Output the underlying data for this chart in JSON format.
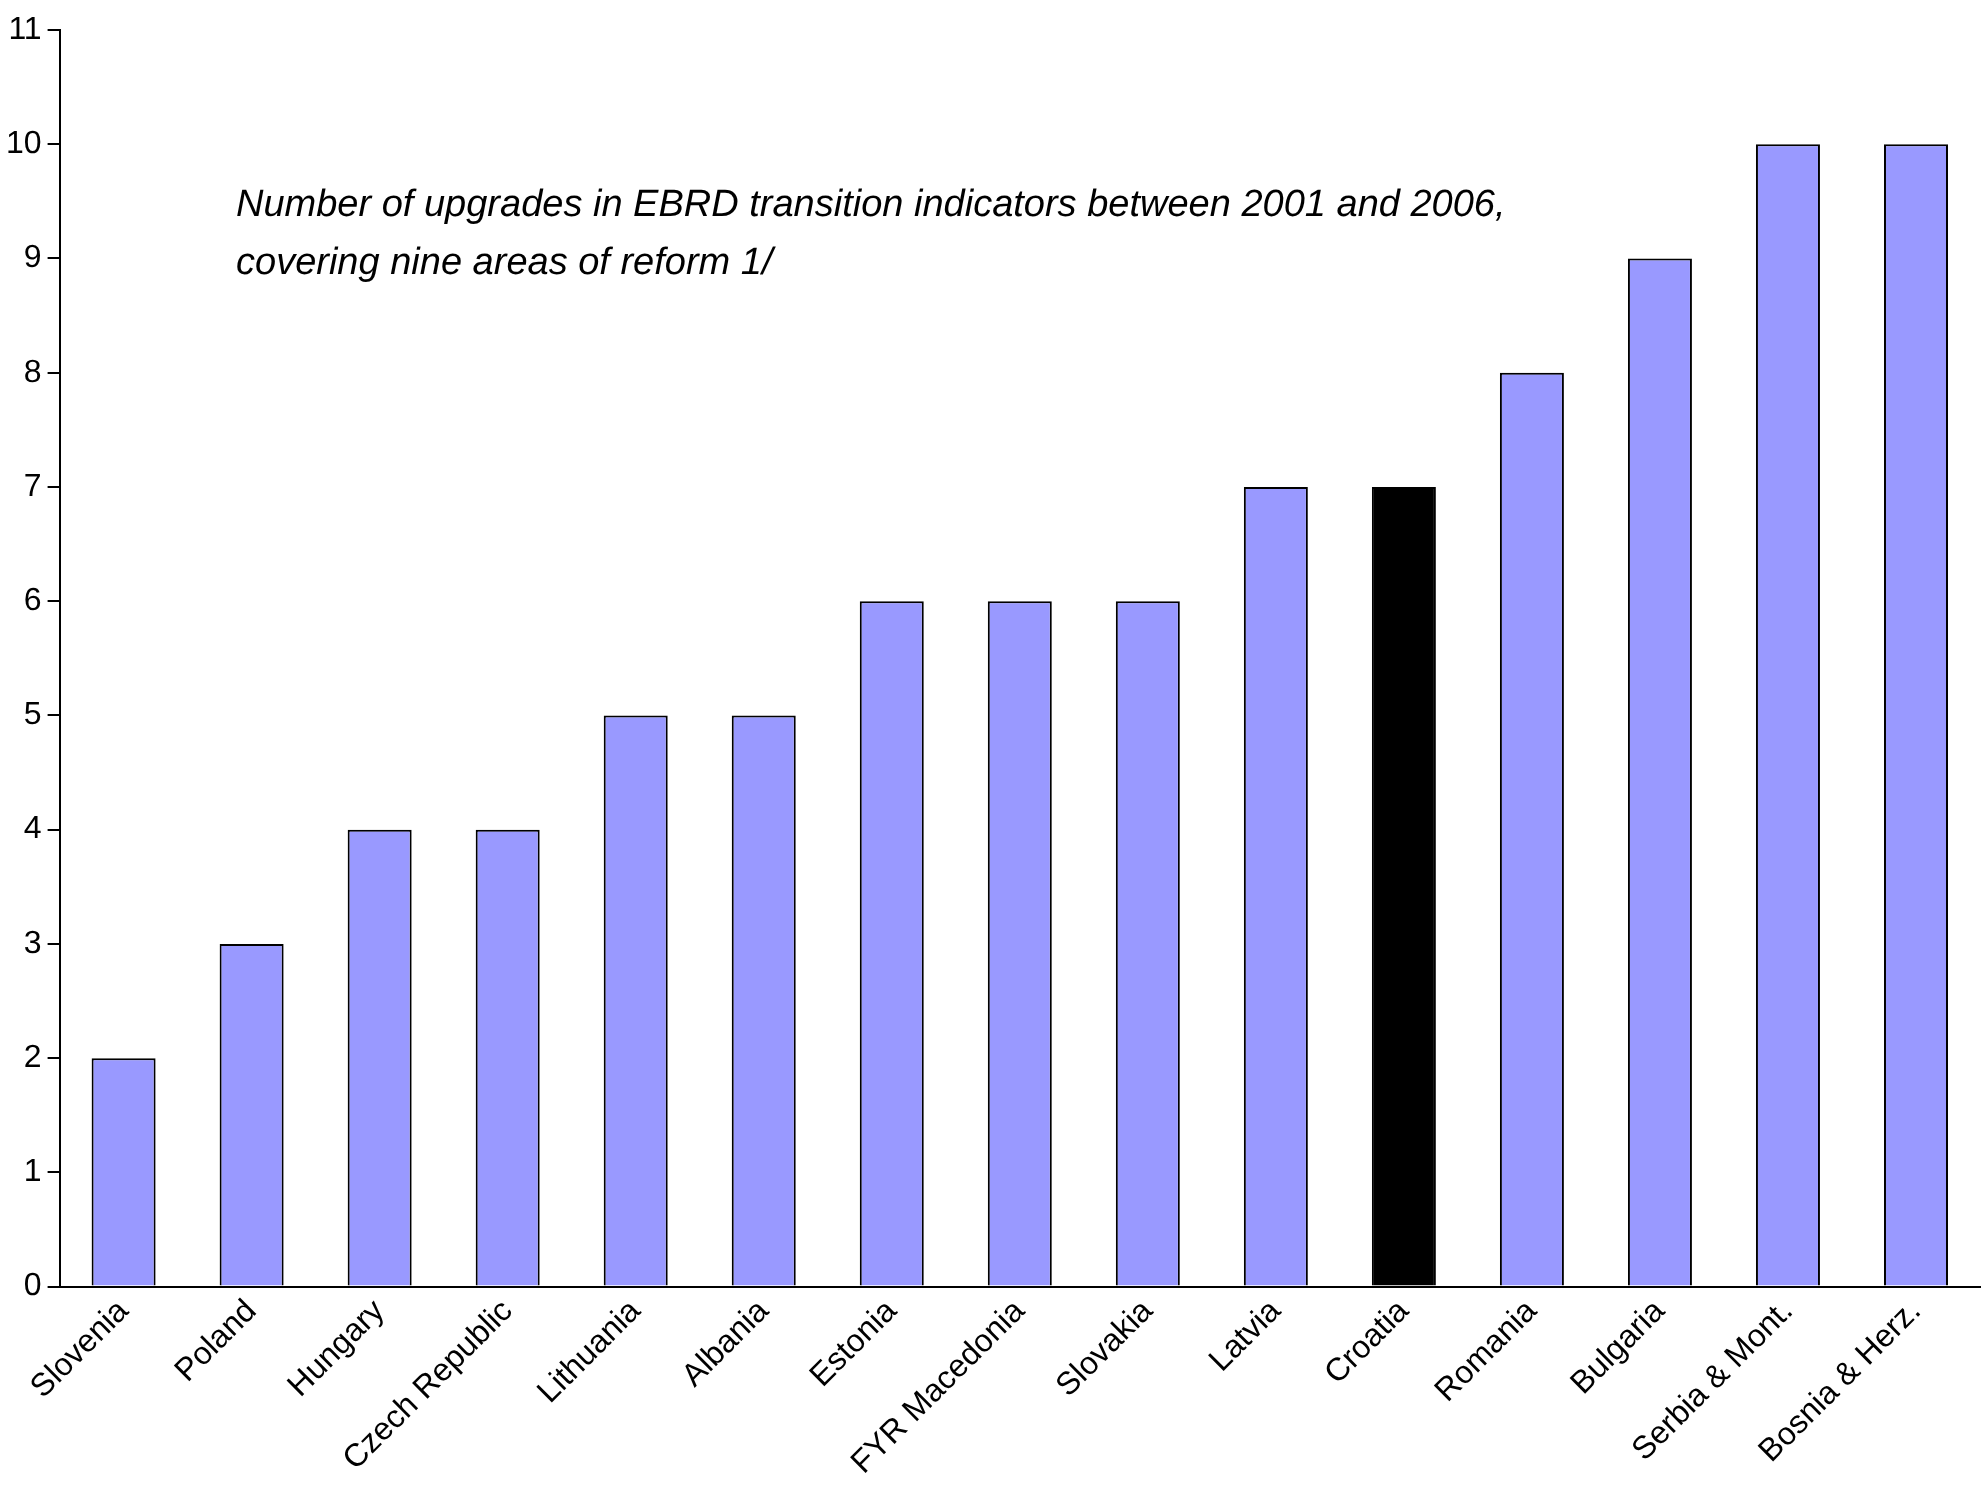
{
  "chart_data": {
    "type": "bar",
    "title": "Number of upgrades in EBRD transition indicators between 2001 and 2006, covering nine areas of reform  1/",
    "categories": [
      "Slovenia",
      "Poland",
      "Hungary",
      "Czech Republic",
      "Lithuania",
      "Albania",
      "Estonia",
      "FYR Macedonia",
      "Slovakia",
      "Latvia",
      "Croatia",
      "Romania",
      "Bulgaria",
      "Serbia & Mont.",
      "Bosnia & Herz."
    ],
    "values": [
      2,
      3,
      4,
      4,
      5,
      5,
      6,
      6,
      6,
      7,
      7,
      8,
      9,
      10,
      10
    ],
    "colors": [
      "#9999ff",
      "#9999ff",
      "#9999ff",
      "#9999ff",
      "#9999ff",
      "#9999ff",
      "#9999ff",
      "#9999ff",
      "#9999ff",
      "#9999ff",
      "#000000",
      "#9999ff",
      "#9999ff",
      "#9999ff",
      "#9999ff"
    ],
    "ylim": [
      0,
      11
    ],
    "yticks": [
      0,
      1,
      2,
      3,
      4,
      5,
      6,
      7,
      8,
      9,
      10,
      11
    ],
    "grid": false,
    "legend": false
  }
}
